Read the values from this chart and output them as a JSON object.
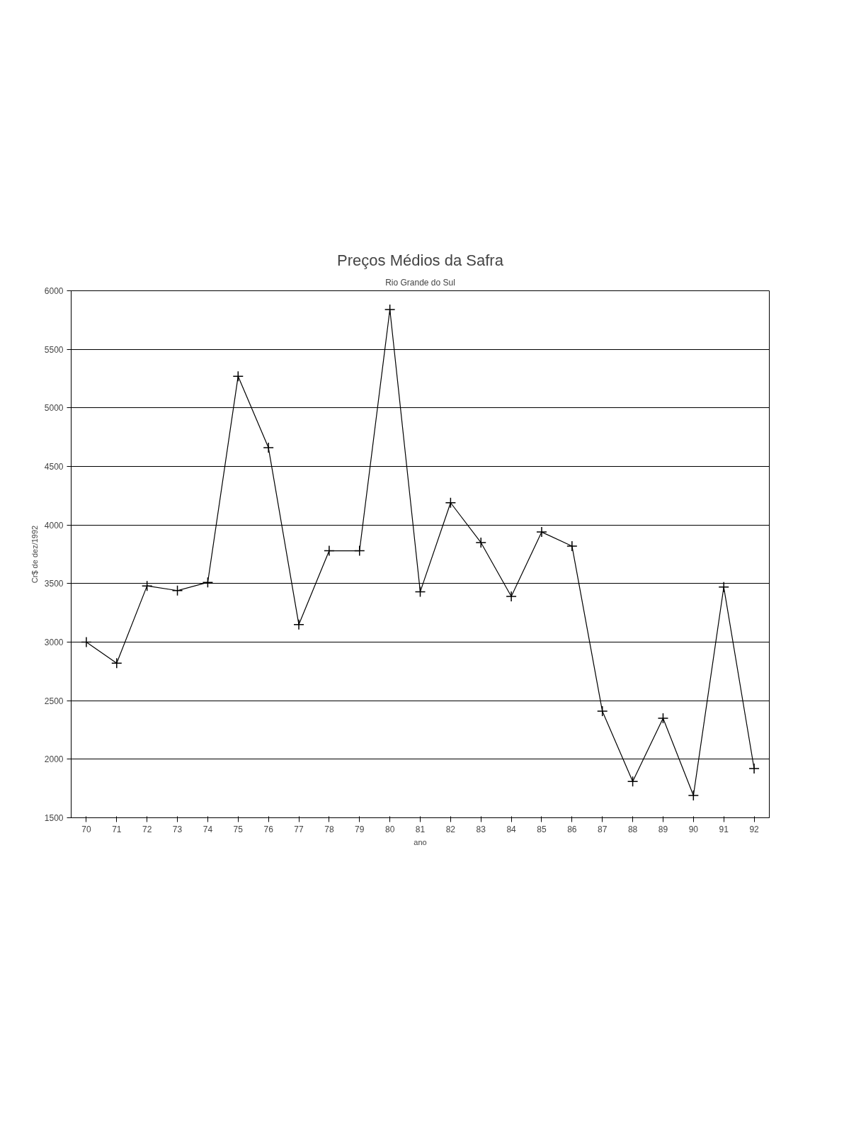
{
  "chart_data": {
    "type": "line",
    "title": "Preços Médios da Safra",
    "subtitle": "Rio Grande do Sul",
    "xlabel": "ano",
    "ylabel": "Cr$ de dez/1992",
    "categories": [
      "70",
      "71",
      "72",
      "73",
      "74",
      "75",
      "76",
      "77",
      "78",
      "79",
      "80",
      "81",
      "82",
      "83",
      "84",
      "85",
      "86",
      "87",
      "88",
      "89",
      "90",
      "91",
      "92"
    ],
    "series": [
      {
        "color": "#000000",
        "values": [
          3000,
          2820,
          3480,
          3440,
          3510,
          5270,
          4660,
          3150,
          3780,
          3780,
          5840,
          3430,
          4190,
          3850,
          3390,
          3940,
          3820,
          2410,
          1810,
          2350,
          1690,
          3470,
          1920
        ]
      }
    ],
    "ylim": [
      1500,
      6000
    ],
    "yticks": [
      1500,
      2000,
      2500,
      3000,
      3500,
      4000,
      4500,
      5000,
      5500,
      6000
    ],
    "grid": "y",
    "marker": "cross",
    "line_style": "solid"
  }
}
